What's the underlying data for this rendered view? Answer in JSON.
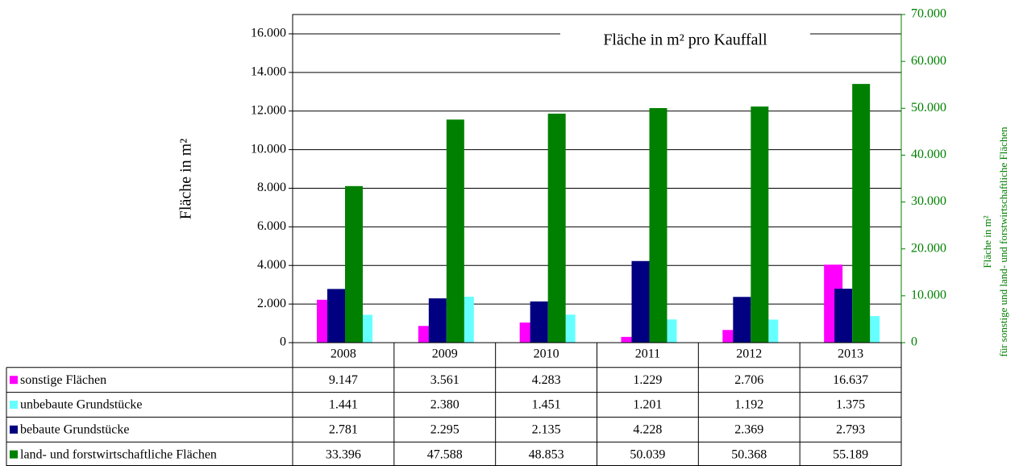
{
  "chart_data": {
    "type": "bar",
    "title": "Fläche in m² pro Kauffall",
    "y_label": "Fläche in m²",
    "y2_label": [
      "Fläche in m²",
      "für sonstige und land- und forstwirtschaftliche Flächen"
    ],
    "categories": [
      "2008",
      "2009",
      "2010",
      "2011",
      "2012",
      "2013"
    ],
    "ylim": [
      0,
      17000
    ],
    "yticks": [
      0,
      {
        "value": 2000,
        "label": "2.000"
      },
      {
        "value": 4000,
        "label": "4.000"
      },
      {
        "value": 6000,
        "label": "6.000"
      },
      {
        "value": 8000,
        "label": "8.000"
      },
      {
        "value": 10000,
        "label": "10.000"
      },
      {
        "value": 12000,
        "label": "12.000"
      },
      {
        "value": 14000,
        "label": "14.000"
      },
      {
        "value": 16000,
        "label": "16.000"
      }
    ],
    "y2lim": [
      0,
      70000
    ],
    "y2ticks": [
      0,
      {
        "value": 10000,
        "label": "10.000"
      },
      {
        "value": 20000,
        "label": "20.000"
      },
      {
        "value": 30000,
        "label": "30.000"
      },
      {
        "value": 40000,
        "label": "40.000"
      },
      {
        "value": 50000,
        "label": "50.000"
      },
      {
        "value": 60000,
        "label": "60.000"
      },
      {
        "value": 70000,
        "label": "70.000"
      }
    ],
    "y2_color": "#008000",
    "grid": true,
    "series": [
      {
        "name": "sonstige Flächen",
        "color": "#ff00ff",
        "axis": "y2",
        "values": [
          9147,
          3561,
          4283,
          1229,
          2706,
          16637
        ],
        "value_labels": [
          "9.147",
          "3.561",
          "4.283",
          "1.229",
          "2.706",
          "16.637"
        ]
      },
      {
        "name": "unbebaute Grundstücke",
        "color": "#66ffff",
        "values": [
          1441,
          2380,
          1451,
          1201,
          1192,
          1375
        ],
        "value_labels": [
          "1.441",
          "2.380",
          "1.451",
          "1.201",
          "1.192",
          "1.375"
        ]
      },
      {
        "name": "bebaute Grundstücke",
        "color": "#000080",
        "values": [
          2781,
          2295,
          2135,
          4228,
          2369,
          2793
        ],
        "value_labels": [
          "2.781",
          "2.295",
          "2.135",
          "4.228",
          "2.369",
          "2.793"
        ]
      },
      {
        "name": "land- und forstwirtschaftliche Flächen",
        "color": "#008000",
        "axis": "y2",
        "values": [
          33396,
          47588,
          48853,
          50039,
          50368,
          55189
        ],
        "value_labels": [
          "33.396",
          "47.588",
          "48.853",
          "50.039",
          "50.368",
          "55.189"
        ]
      }
    ]
  }
}
